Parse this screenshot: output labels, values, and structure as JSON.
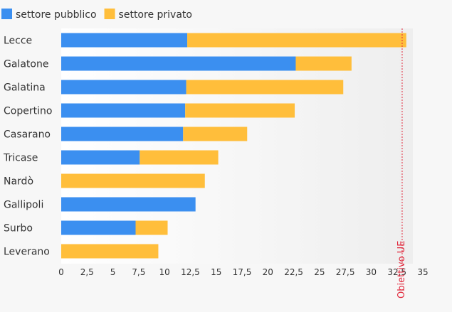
{
  "chart_data": {
    "type": "bar",
    "orientation": "horizontal",
    "stacked": true,
    "categories": [
      "Lecce",
      "Galatone",
      "Galatina",
      "Copertino",
      "Casarano",
      "Tricase",
      "Nardò",
      "Gallipoli",
      "Surbo",
      "Leverano"
    ],
    "series": [
      {
        "name": "settore pubblico",
        "color": "#3b8ff0",
        "values": [
          12.2,
          22.7,
          12.1,
          12.0,
          11.8,
          7.6,
          0,
          13.0,
          7.2,
          0
        ]
      },
      {
        "name": "settore privato",
        "color": "#ffbe3b",
        "values": [
          21.2,
          5.4,
          15.2,
          10.6,
          6.2,
          7.6,
          13.9,
          0,
          3.1,
          9.4
        ]
      }
    ],
    "xlim": [
      0,
      35
    ],
    "xticks": [
      "0",
      "2,5",
      "5",
      "7,5",
      "10",
      "12,5",
      "15",
      "17,5",
      "20",
      "22,5",
      "25",
      "27,5",
      "30",
      "32,5",
      "35"
    ],
    "reference_line": {
      "value": 33,
      "label": "Obiettivo UE",
      "color": "#e0263a"
    },
    "legend_position": "top-left",
    "grid": false
  }
}
